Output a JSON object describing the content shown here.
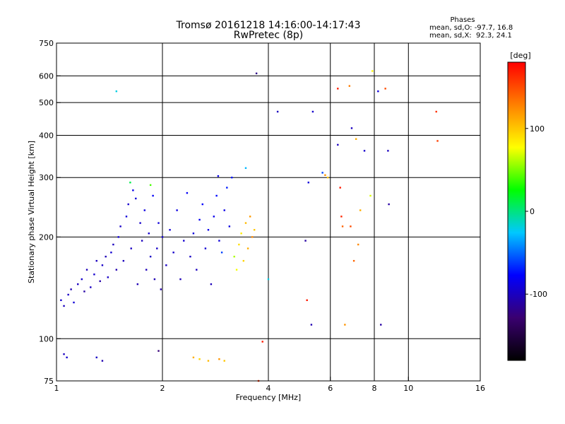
{
  "chart_data": {
    "type": "scatter",
    "title": "Tromsø 20161218 14:16:00-14:17:43",
    "subtitle": "RwPretec (8p)",
    "xlabel": "Frequency [MHz]",
    "ylabel": "Stationary phase Virtual Height [km]",
    "x_scale": "log",
    "y_scale": "log",
    "xlim": [
      1,
      16
    ],
    "ylim": [
      75,
      750
    ],
    "x_ticks": [
      {
        "value": 1,
        "label": "1"
      },
      {
        "value": 2,
        "label": "2"
      },
      {
        "value": 4,
        "label": "4"
      },
      {
        "value": 6,
        "label": "6"
      },
      {
        "value": 8,
        "label": "8"
      },
      {
        "value": 10,
        "label": "10"
      },
      {
        "value": 16,
        "label": "16"
      }
    ],
    "y_ticks": [
      {
        "value": 75,
        "label": "75"
      },
      {
        "value": 100,
        "label": "100"
      },
      {
        "value": 200,
        "label": "200"
      },
      {
        "value": 300,
        "label": "300"
      },
      {
        "value": 400,
        "label": "400"
      },
      {
        "value": 500,
        "label": "500"
      },
      {
        "value": 600,
        "label": "600"
      },
      {
        "value": 750,
        "label": "750"
      }
    ],
    "x_grid": [
      2,
      4,
      6,
      8,
      10
    ],
    "y_grid": [
      100,
      200,
      300,
      400,
      500,
      600
    ],
    "legend": {
      "header": "Phases",
      "line1": "mean, sd,O: -97.7, 16.8",
      "line2": "mean, sd,X:  92.3, 24.1"
    },
    "colorbar": {
      "label": "[deg]",
      "ticks": [
        {
          "value": 100,
          "label": "100"
        },
        {
          "value": 0,
          "label": "0"
        },
        {
          "value": -100,
          "label": "-100"
        }
      ],
      "range": [
        -180,
        180
      ],
      "colors": [
        "#000000",
        "#3a0070",
        "#0000ff",
        "#00c8ff",
        "#00ff00",
        "#ffff00",
        "#ff8000",
        "#ff0000"
      ]
    },
    "points": [
      [
        1.03,
        130,
        -95
      ],
      [
        1.05,
        125,
        -100
      ],
      [
        1.08,
        135,
        -98
      ],
      [
        1.1,
        140,
        -105
      ],
      [
        1.12,
        128,
        -92
      ],
      [
        1.15,
        145,
        -100
      ],
      [
        1.18,
        150,
        -96
      ],
      [
        1.2,
        138,
        -110
      ],
      [
        1.22,
        160,
        -102
      ],
      [
        1.25,
        142,
        -99
      ],
      [
        1.28,
        155,
        -95
      ],
      [
        1.3,
        170,
        -100
      ],
      [
        1.33,
        148,
        -108
      ],
      [
        1.35,
        165,
        -97
      ],
      [
        1.38,
        175,
        -103
      ],
      [
        1.4,
        152,
        -98
      ],
      [
        1.43,
        180,
        -94
      ],
      [
        1.45,
        190,
        -100
      ],
      [
        1.48,
        160,
        -106
      ],
      [
        1.5,
        200,
        -92
      ],
      [
        1.52,
        215,
        -97
      ],
      [
        1.55,
        170,
        -101
      ],
      [
        1.58,
        230,
        -90
      ],
      [
        1.6,
        250,
        -95
      ],
      [
        1.63,
        185,
        -99
      ],
      [
        1.65,
        275,
        -85
      ],
      [
        1.68,
        260,
        -92
      ],
      [
        1.7,
        145,
        -104
      ],
      [
        1.73,
        220,
        -96
      ],
      [
        1.75,
        195,
        -100
      ],
      [
        1.78,
        240,
        -88
      ],
      [
        1.8,
        160,
        -102
      ],
      [
        1.83,
        205,
        -95
      ],
      [
        1.85,
        175,
        -98
      ],
      [
        1.88,
        265,
        -80
      ],
      [
        1.9,
        150,
        -104
      ],
      [
        1.93,
        185,
        -97
      ],
      [
        1.95,
        220,
        -90
      ],
      [
        1.98,
        140,
        -108
      ],
      [
        2.0,
        200,
        -94
      ],
      [
        2.05,
        165,
        -99
      ],
      [
        2.1,
        210,
        -92
      ],
      [
        2.15,
        180,
        -96
      ],
      [
        2.2,
        240,
        -88
      ],
      [
        2.25,
        150,
        -103
      ],
      [
        2.3,
        195,
        -94
      ],
      [
        2.35,
        270,
        -80
      ],
      [
        2.4,
        175,
        -98
      ],
      [
        2.45,
        205,
        -90
      ],
      [
        2.5,
        160,
        -100
      ],
      [
        2.55,
        225,
        -82
      ],
      [
        2.6,
        250,
        -78
      ],
      [
        2.65,
        185,
        -93
      ],
      [
        2.7,
        210,
        -85
      ],
      [
        2.75,
        145,
        -102
      ],
      [
        2.8,
        230,
        -84
      ],
      [
        2.85,
        265,
        -75
      ],
      [
        2.9,
        195,
        -90
      ],
      [
        2.95,
        180,
        -60
      ],
      [
        3.0,
        240,
        -86
      ],
      [
        3.05,
        280,
        -70
      ],
      [
        3.1,
        215,
        -88
      ],
      [
        3.15,
        300,
        -72
      ],
      [
        3.2,
        175,
        60
      ],
      [
        3.25,
        160,
        75
      ],
      [
        3.3,
        190,
        90
      ],
      [
        3.35,
        205,
        85
      ],
      [
        3.4,
        170,
        95
      ],
      [
        3.45,
        220,
        105
      ],
      [
        3.5,
        185,
        110
      ],
      [
        3.55,
        230,
        118
      ],
      [
        3.6,
        200,
        125
      ],
      [
        3.65,
        210,
        100
      ],
      [
        2.45,
        88,
        110
      ],
      [
        2.55,
        87,
        95
      ],
      [
        2.7,
        86,
        105
      ],
      [
        2.9,
        87,
        120
      ],
      [
        3.0,
        86,
        100
      ],
      [
        1.05,
        90,
        -100
      ],
      [
        1.07,
        88,
        -95
      ],
      [
        1.3,
        88,
        -98
      ],
      [
        1.35,
        86,
        -105
      ],
      [
        1.48,
        540,
        -20
      ],
      [
        2.88,
        303,
        -85
      ],
      [
        3.45,
        320,
        -30
      ],
      [
        3.7,
        610,
        -120
      ],
      [
        4.25,
        470,
        -100
      ],
      [
        5.35,
        470,
        -95
      ],
      [
        5.2,
        290,
        -90
      ],
      [
        5.7,
        310,
        -60
      ],
      [
        5.8,
        305,
        120
      ],
      [
        5.9,
        300,
        100
      ],
      [
        6.3,
        550,
        170
      ],
      [
        6.8,
        560,
        130
      ],
      [
        6.9,
        420,
        -100
      ],
      [
        7.1,
        390,
        110
      ],
      [
        7.5,
        360,
        -95
      ],
      [
        7.9,
        620,
        80
      ],
      [
        8.2,
        540,
        -90
      ],
      [
        8.6,
        550,
        150
      ],
      [
        8.75,
        360,
        -100
      ],
      [
        8.8,
        250,
        -110
      ],
      [
        12.0,
        470,
        160
      ],
      [
        12.1,
        385,
        155
      ],
      [
        6.3,
        375,
        -100
      ],
      [
        6.4,
        280,
        170
      ],
      [
        6.45,
        230,
        165
      ],
      [
        6.5,
        215,
        140
      ],
      [
        6.6,
        110,
        120
      ],
      [
        7.0,
        170,
        140
      ],
      [
        7.2,
        190,
        125
      ],
      [
        6.85,
        215,
        150
      ],
      [
        7.3,
        240,
        110
      ],
      [
        7.8,
        265,
        70
      ],
      [
        8.35,
        110,
        -110
      ],
      [
        5.1,
        195,
        -110
      ],
      [
        5.15,
        130,
        170
      ],
      [
        5.3,
        110,
        -105
      ],
      [
        4.0,
        150,
        -20
      ],
      [
        3.85,
        98,
        170
      ],
      [
        3.75,
        75,
        160
      ],
      [
        1.95,
        92,
        -125
      ],
      [
        1.62,
        290,
        10
      ],
      [
        1.85,
        285,
        40
      ]
    ]
  }
}
